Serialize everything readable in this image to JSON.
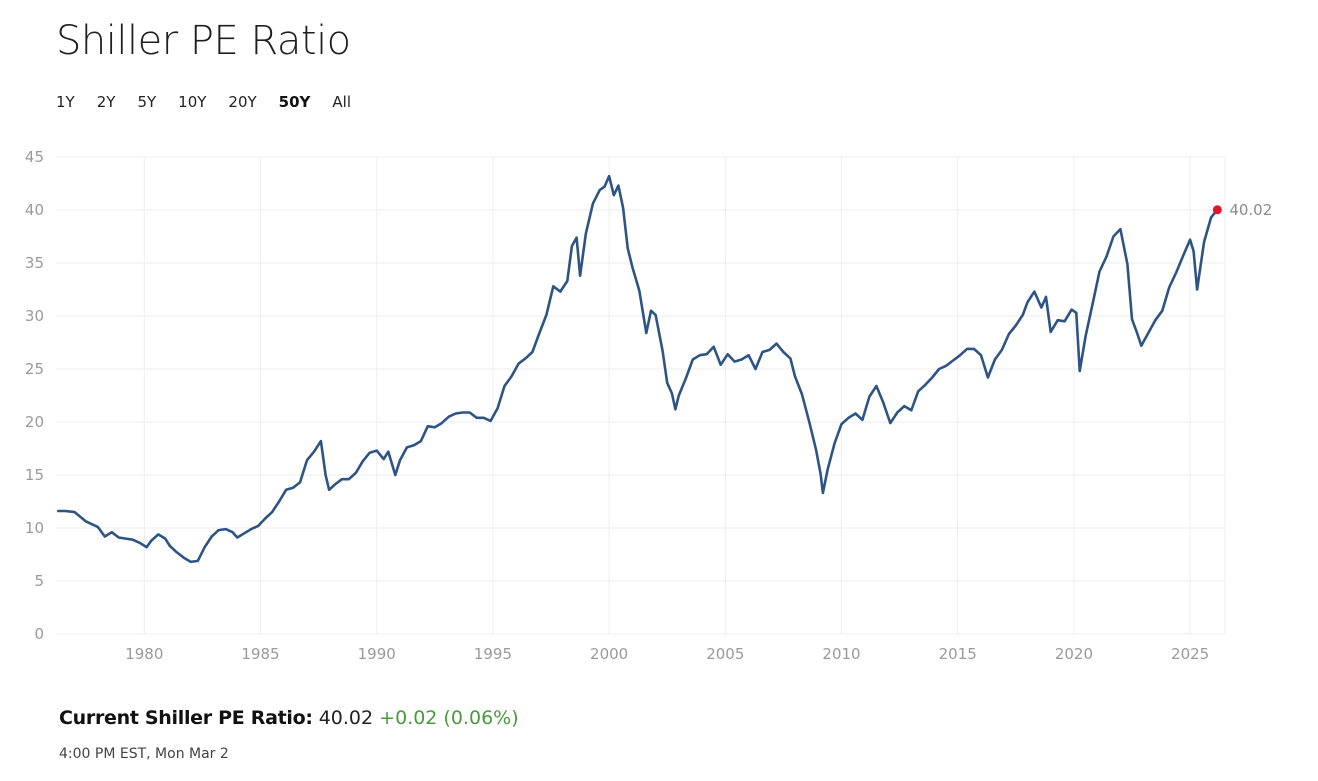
{
  "page": {
    "title": "Shiller PE Ratio",
    "ranges": [
      {
        "label": "1Y",
        "active": false
      },
      {
        "label": "2Y",
        "active": false
      },
      {
        "label": "5Y",
        "active": false
      },
      {
        "label": "10Y",
        "active": false
      },
      {
        "label": "20Y",
        "active": false
      },
      {
        "label": "50Y",
        "active": true
      },
      {
        "label": "All",
        "active": false
      }
    ],
    "current": {
      "label": "Current Shiller PE Ratio:",
      "value": "40.02",
      "change": "+0.02 (0.06%)"
    },
    "timestamp": "4:00 PM EST, Mon Mar 2"
  },
  "colors": {
    "line": "#2e5486",
    "marker": "#e0162b",
    "change_positive": "#4a9a3c",
    "grid": "#eeeeee"
  },
  "chart_data": {
    "type": "line",
    "title": "",
    "xlabel": "",
    "ylabel": "",
    "xlim": [
      1976.2,
      2026.5
    ],
    "ylim": [
      0,
      45
    ],
    "yticks": [
      "0",
      "5",
      "10",
      "15",
      "20",
      "25",
      "30",
      "35",
      "40",
      "45"
    ],
    "xticks": [
      "1980",
      "1985",
      "1990",
      "1995",
      "2000",
      "2005",
      "2010",
      "2015",
      "2020",
      "2025"
    ],
    "grid": true,
    "last_point_label": "40.02",
    "series": [
      {
        "x": [
          1976.3,
          1976.6,
          1977.0,
          1977.5,
          1978.0,
          1978.3,
          1978.6,
          1978.9,
          1979.2,
          1979.5,
          1979.8,
          1980.1,
          1980.3,
          1980.6,
          1980.9,
          1981.1,
          1981.4,
          1981.7,
          1982.0,
          1982.3,
          1982.6,
          1982.9,
          1983.2,
          1983.5,
          1983.8,
          1984.0,
          1984.3,
          1984.6,
          1984.9,
          1985.2,
          1985.5,
          1985.8,
          1986.1,
          1986.4,
          1986.7,
          1987.0,
          1987.3,
          1987.6,
          1987.8,
          1987.95,
          1988.2,
          1988.5,
          1988.8,
          1989.1,
          1989.4,
          1989.7,
          1990.0,
          1990.3,
          1990.5,
          1990.8,
          1991.0,
          1991.3,
          1991.6,
          1991.9,
          1992.2,
          1992.5,
          1992.8,
          1993.1,
          1993.4,
          1993.7,
          1994.0,
          1994.3,
          1994.6,
          1994.9,
          1995.2,
          1995.5,
          1995.8,
          1996.1,
          1996.4,
          1996.7,
          1997.0,
          1997.3,
          1997.6,
          1997.9,
          1998.2,
          1998.4,
          1998.6,
          1998.75,
          1999.0,
          1999.3,
          1999.6,
          1999.8,
          2000.0,
          2000.2,
          2000.4,
          2000.6,
          2000.8,
          2001.0,
          2001.3,
          2001.6,
          2001.8,
          2002.0,
          2002.3,
          2002.5,
          2002.7,
          2002.85,
          2003.0,
          2003.3,
          2003.6,
          2003.9,
          2004.2,
          2004.5,
          2004.8,
          2005.1,
          2005.4,
          2005.7,
          2006.0,
          2006.3,
          2006.6,
          2006.9,
          2007.2,
          2007.5,
          2007.8,
          2008.0,
          2008.3,
          2008.6,
          2008.9,
          2009.1,
          2009.2,
          2009.4,
          2009.7,
          2010.0,
          2010.3,
          2010.6,
          2010.9,
          2011.2,
          2011.5,
          2011.8,
          2012.1,
          2012.4,
          2012.7,
          2013.0,
          2013.3,
          2013.6,
          2013.9,
          2014.2,
          2014.5,
          2014.8,
          2015.1,
          2015.4,
          2015.7,
          2016.0,
          2016.3,
          2016.6,
          2016.9,
          2017.2,
          2017.5,
          2017.8,
          2018.0,
          2018.3,
          2018.6,
          2018.8,
          2019.0,
          2019.3,
          2019.6,
          2019.9,
          2020.1,
          2020.25,
          2020.5,
          2020.8,
          2021.1,
          2021.4,
          2021.7,
          2022.0,
          2022.3,
          2022.5,
          2022.7,
          2022.9,
          2023.2,
          2023.5,
          2023.8,
          2024.1,
          2024.4,
          2024.7,
          2025.0,
          2025.15,
          2025.3,
          2025.6,
          2025.9,
          2026.17
        ],
        "values": [
          11.6,
          11.6,
          11.5,
          10.6,
          10.1,
          9.2,
          9.6,
          9.1,
          9.0,
          8.9,
          8.6,
          8.2,
          8.8,
          9.4,
          9.0,
          8.3,
          7.7,
          7.2,
          6.8,
          6.9,
          8.2,
          9.2,
          9.8,
          9.9,
          9.6,
          9.1,
          9.5,
          9.9,
          10.2,
          10.9,
          11.5,
          12.5,
          13.6,
          13.8,
          14.3,
          16.4,
          17.2,
          18.2,
          15.0,
          13.6,
          14.1,
          14.6,
          14.6,
          15.2,
          16.3,
          17.1,
          17.3,
          16.5,
          17.2,
          15.0,
          16.4,
          17.6,
          17.8,
          18.2,
          19.6,
          19.5,
          19.9,
          20.5,
          20.8,
          20.9,
          20.9,
          20.4,
          20.4,
          20.1,
          21.3,
          23.4,
          24.3,
          25.5,
          26.0,
          26.6,
          28.4,
          30.1,
          32.8,
          32.3,
          33.3,
          36.6,
          37.4,
          33.8,
          37.8,
          40.6,
          41.9,
          42.2,
          43.2,
          41.4,
          42.3,
          40.2,
          36.4,
          34.6,
          32.4,
          28.4,
          30.5,
          30.1,
          26.7,
          23.7,
          22.7,
          21.2,
          22.5,
          24.1,
          25.9,
          26.3,
          26.4,
          27.1,
          25.4,
          26.4,
          25.7,
          25.9,
          26.3,
          25.0,
          26.6,
          26.8,
          27.4,
          26.6,
          26.0,
          24.3,
          22.6,
          20.1,
          17.4,
          15.1,
          13.3,
          15.5,
          18.0,
          19.8,
          20.4,
          20.8,
          20.2,
          22.4,
          23.4,
          21.8,
          19.9,
          20.9,
          21.5,
          21.1,
          22.9,
          23.5,
          24.2,
          25.0,
          25.3,
          25.8,
          26.3,
          26.9,
          26.9,
          26.3,
          24.2,
          25.9,
          26.8,
          28.3,
          29.1,
          30.1,
          31.3,
          32.3,
          30.8,
          31.8,
          28.5,
          29.6,
          29.5,
          30.6,
          30.3,
          24.8,
          28.1,
          31.1,
          34.2,
          35.6,
          37.5,
          38.2,
          34.9,
          29.7,
          28.5,
          27.2,
          28.4,
          29.6,
          30.5,
          32.7,
          34.1,
          35.7,
          37.2,
          36.1,
          32.5,
          37.0,
          39.3,
          40.02
        ]
      }
    ]
  }
}
